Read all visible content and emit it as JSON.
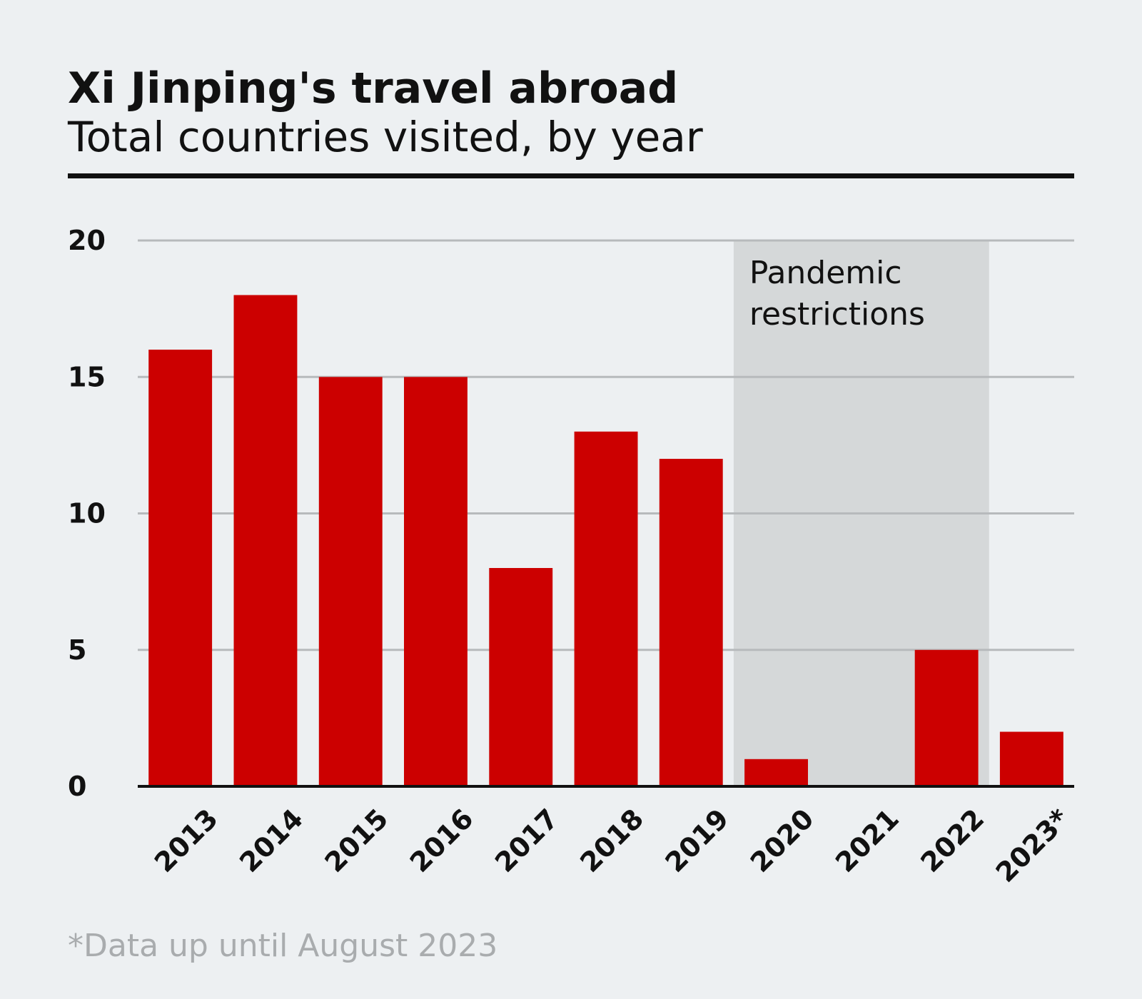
{
  "colors": {
    "background": "#edf0f2",
    "bar": "#cc0000",
    "grid": "#b7babc",
    "shade": "#d5d8d9",
    "text": "#111111",
    "footnote": "#a9acae"
  },
  "chart_data": {
    "type": "bar",
    "title": "Xi Jinping's travel abroad",
    "subtitle": "Total countries visited, by year",
    "categories": [
      "2013",
      "2014",
      "2015",
      "2016",
      "2017",
      "2018",
      "2019",
      "2020",
      "2021",
      "2022",
      "2023*"
    ],
    "values": [
      16,
      18,
      15,
      15,
      8,
      13,
      12,
      1,
      0,
      5,
      2
    ],
    "xlabel": "",
    "ylabel": "",
    "ylim": [
      0,
      20
    ],
    "yticks": [
      0,
      5,
      10,
      15,
      20
    ],
    "grid": true,
    "legend": "none",
    "annotations": [
      {
        "type": "shaded-region",
        "label_lines": [
          "Pandemic",
          "restrictions"
        ],
        "from_category": "2020",
        "to_category": "2022"
      }
    ],
    "footnote": "*Data up until August 2023"
  }
}
